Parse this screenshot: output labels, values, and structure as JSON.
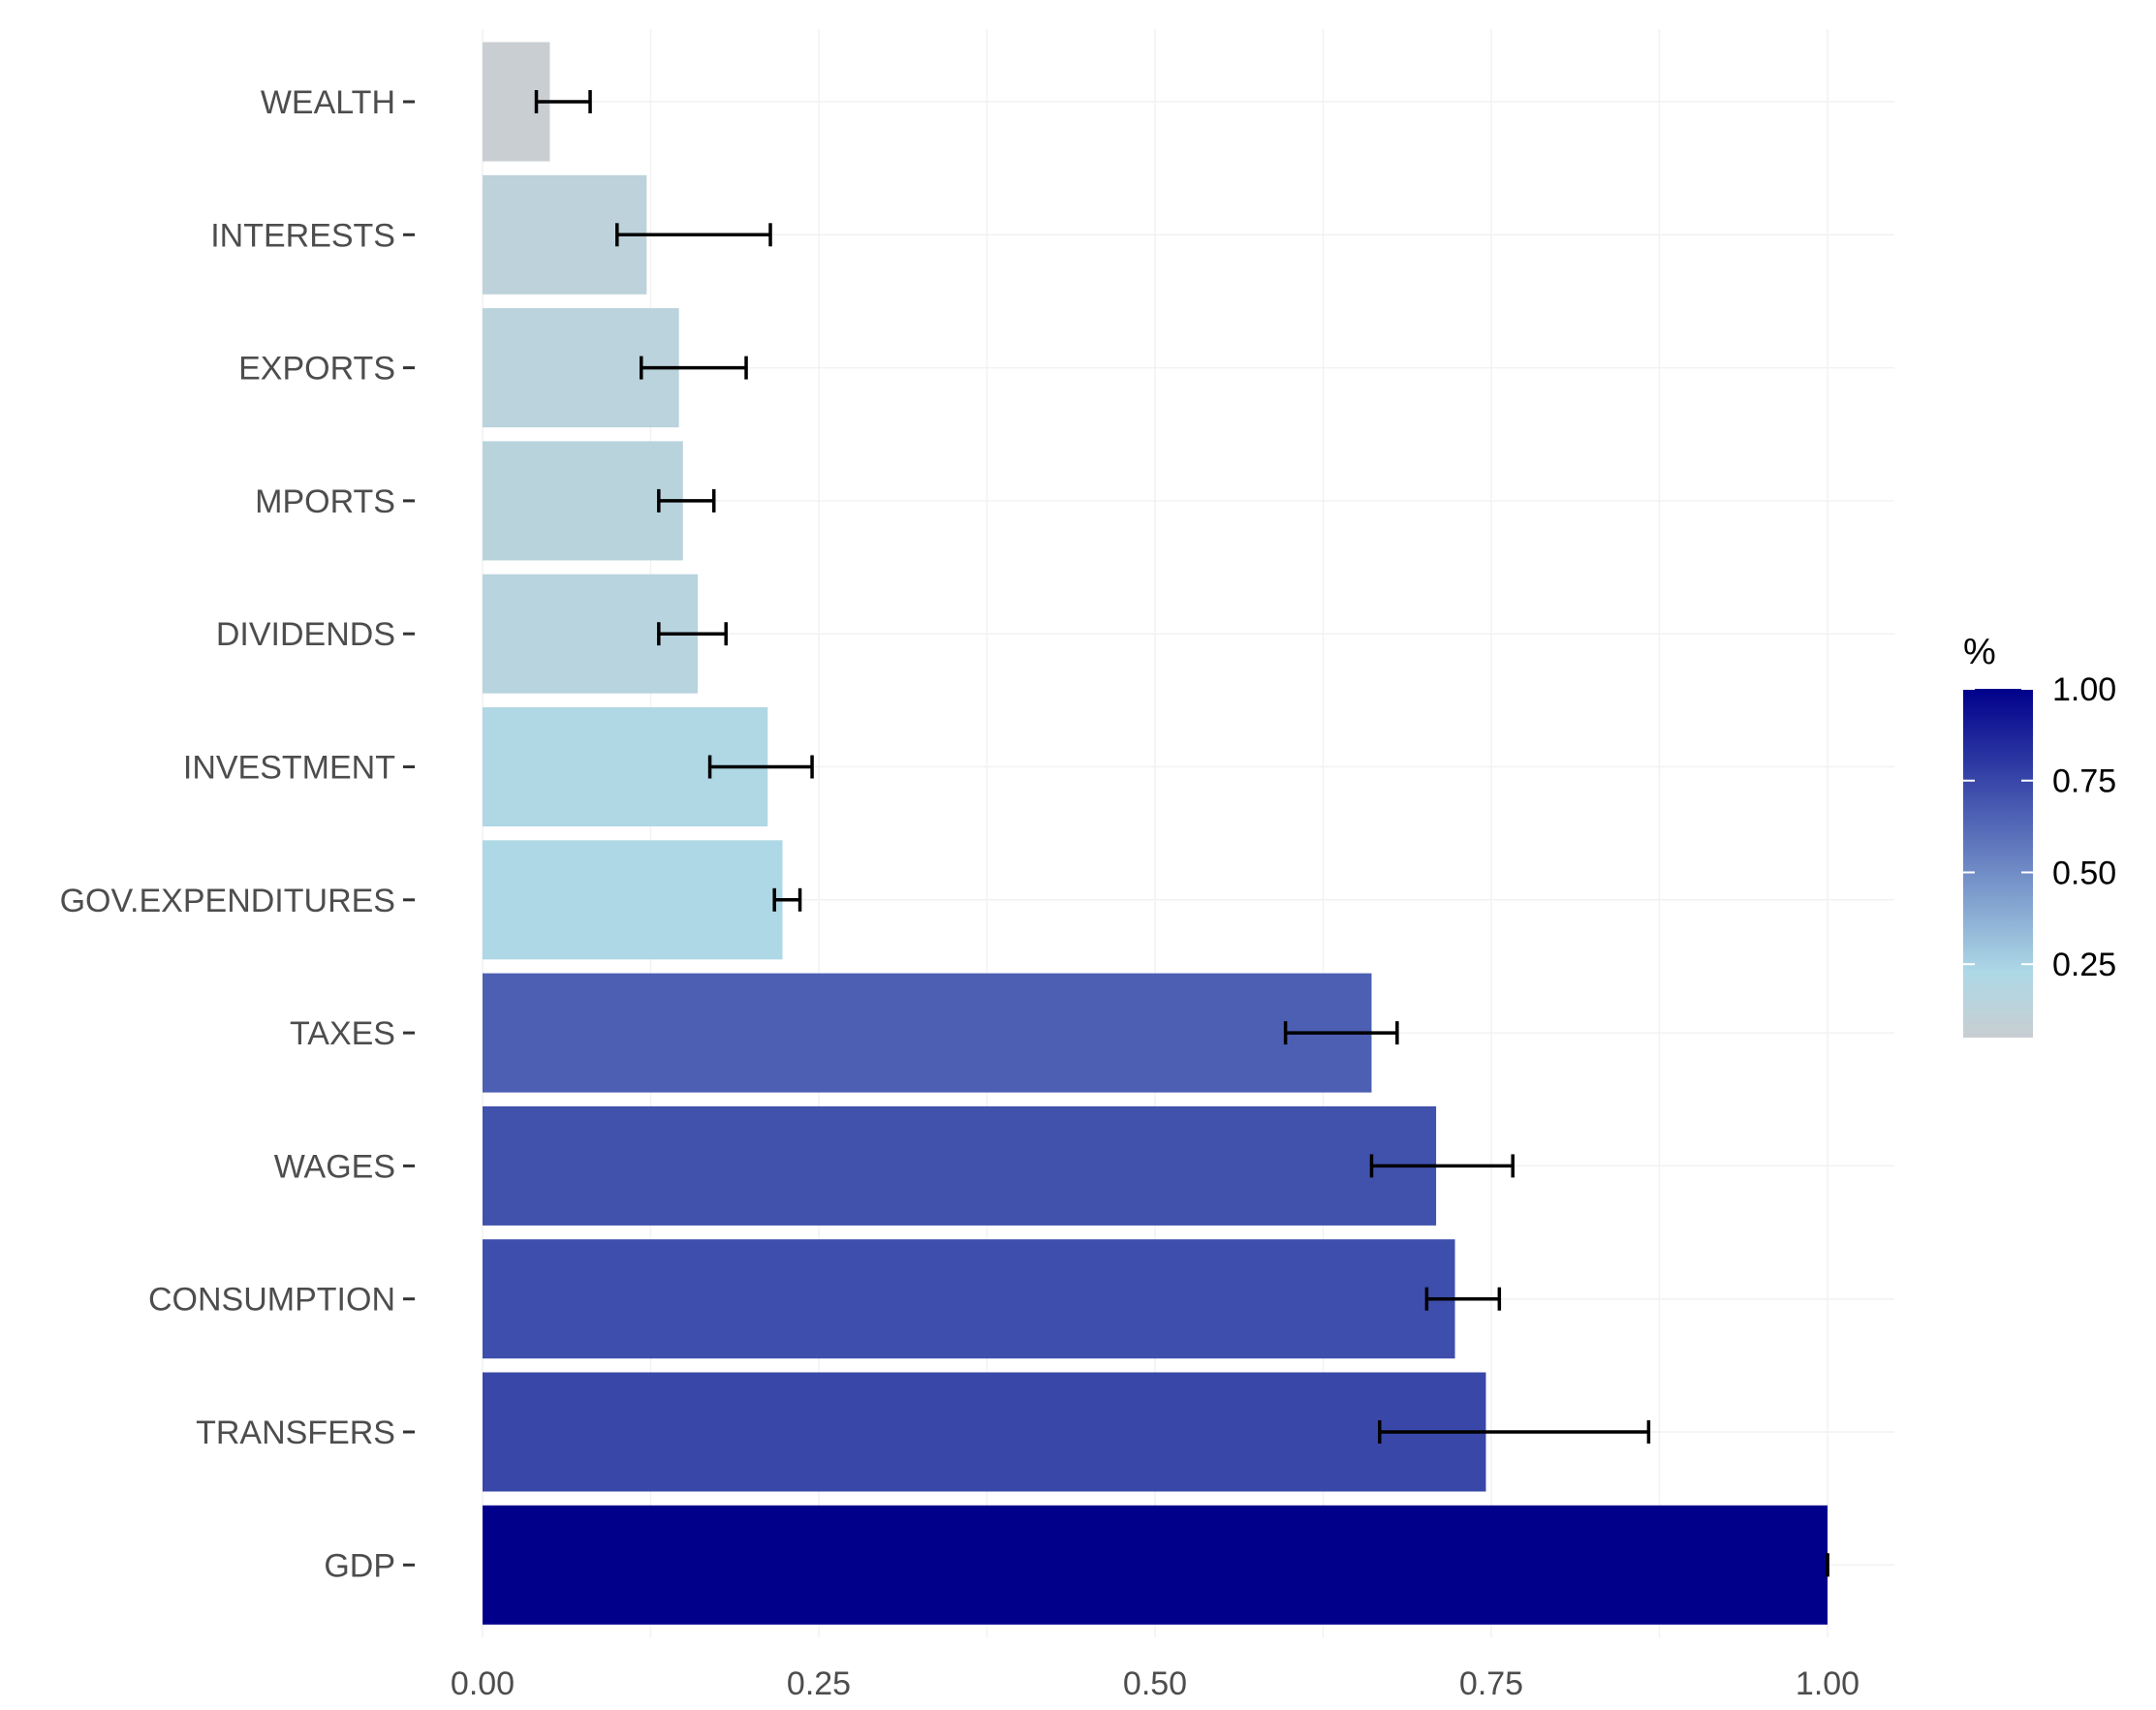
{
  "chart_data": {
    "type": "bar",
    "orientation": "horizontal",
    "categories": [
      "WEALTH",
      "INTERESTS",
      "EXPORTS",
      "MPORTS",
      "DIVIDENDS",
      "INVESTMENT",
      "GOV.EXPENDITURES",
      "TAXES",
      "WAGES",
      "CONSUMPTION",
      "TRANSFERS",
      "GDP"
    ],
    "values": [
      0.05,
      0.122,
      0.146,
      0.149,
      0.16,
      0.212,
      0.223,
      0.661,
      0.709,
      0.723,
      0.746,
      1.0
    ],
    "error_low": [
      0.04,
      0.1,
      0.118,
      0.131,
      0.131,
      0.169,
      0.217,
      0.597,
      0.661,
      0.702,
      0.667,
      1.0
    ],
    "error_high": [
      0.08,
      0.214,
      0.196,
      0.172,
      0.181,
      0.245,
      0.236,
      0.68,
      0.766,
      0.756,
      0.867,
      1.0
    ],
    "xlim": [
      -0.0,
      1.05
    ],
    "x_ticks": [
      "0.00",
      "0.25",
      "0.50",
      "0.75",
      "1.00"
    ],
    "x_tick_values": [
      0,
      0.25,
      0.5,
      0.75,
      1.0
    ],
    "title": "",
    "xlabel": "",
    "ylabel": "",
    "grid": true,
    "legend": {
      "title": "%",
      "position": "right",
      "type": "gradient",
      "low_color": "#c8ced2",
      "mid_color": "#add8e6",
      "high_color": "#00008b",
      "ticks": [
        "0.25",
        "0.50",
        "0.75",
        "1.00"
      ],
      "tick_values": [
        0.25,
        0.5,
        0.75,
        1.0
      ],
      "range": [
        0.05,
        1.0
      ]
    }
  }
}
